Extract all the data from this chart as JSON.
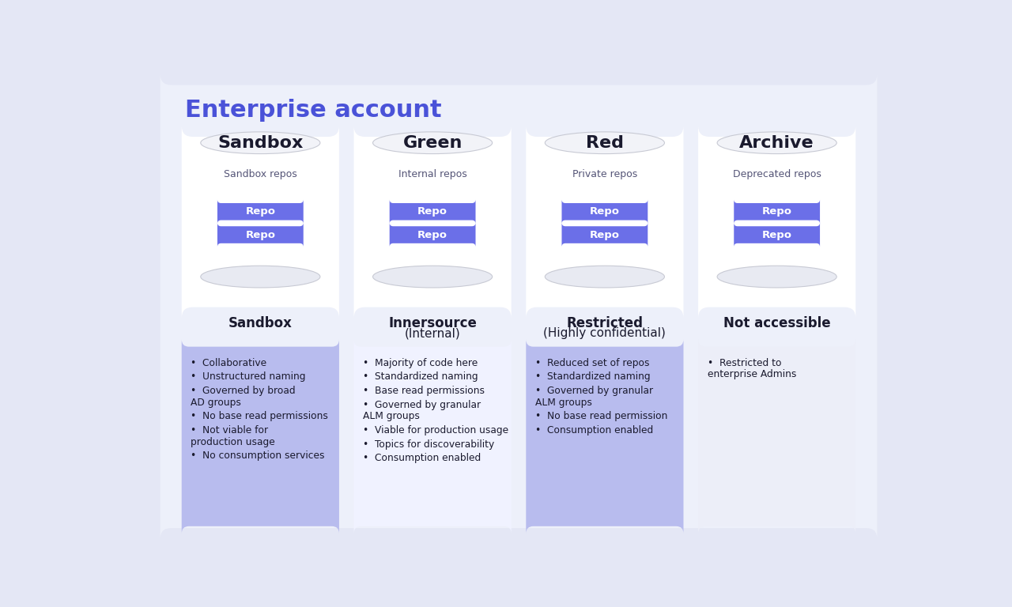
{
  "title": "Enterprise account",
  "title_color": "#4A52D8",
  "bg_color": "#EDF0FA",
  "outer_bg": "#E4E7F5",
  "columns": [
    {
      "name": "Sandbox",
      "repo_label": "Sandbox repos",
      "subtitle_line1": "Sandbox",
      "subtitle_line1_bold": true,
      "subtitle_line2": "",
      "subtitle_line2_bold": false,
      "bullet_bg": "#B8BCEE",
      "bullets": [
        "Collaborative",
        "Unstructured naming",
        "Governed by broad\n  AD groups",
        "No base read permissions",
        "Not viable for\n  production usage",
        "No consumption services"
      ]
    },
    {
      "name": "Green",
      "repo_label": "Internal repos",
      "subtitle_line1": "Innersource",
      "subtitle_line1_bold": true,
      "subtitle_line2": "(Internal)",
      "subtitle_line2_bold": false,
      "bullet_bg": "#F0F2FF",
      "bullets": [
        "Majority of code here",
        "Standardized naming",
        "Base read permissions",
        "Governed by granular\n  ALM groups",
        "Viable for production usage",
        "Topics for discoverability",
        "Consumption enabled"
      ]
    },
    {
      "name": "Red",
      "repo_label": "Private repos",
      "subtitle_line1": "Restricted",
      "subtitle_line1_bold": true,
      "subtitle_line2": "(Highly confidential)",
      "subtitle_line2_bold": false,
      "bullet_bg": "#B8BCEE",
      "bullets": [
        "Reduced set of repos",
        "Standardized naming",
        "Governed by granular\n  ALM groups",
        "No base read permission",
        "Consumption enabled"
      ]
    },
    {
      "name": "Archive",
      "repo_label": "Deprecated repos",
      "subtitle_line1": "Not accessible",
      "subtitle_line1_bold": true,
      "subtitle_line2": "",
      "subtitle_line2_bold": false,
      "bullet_bg": "#ECEEF8",
      "bullets": [
        "Restricted to\n  enterprise Admins"
      ]
    }
  ],
  "repo_button_color": "#6B6FE8",
  "repo_button_text": "Repo",
  "repo_button_text_color": "#FFFFFF",
  "cylinder_body_color": "#FFFFFF",
  "cylinder_top_color": "#F2F3F8",
  "cylinder_top_edge_color": "#C8CAD4",
  "cylinder_shadow_color": "#C4C8DC",
  "card_bg": "#FFFFFF",
  "text_dark": "#1a1a2e",
  "repo_label_color": "#555577"
}
